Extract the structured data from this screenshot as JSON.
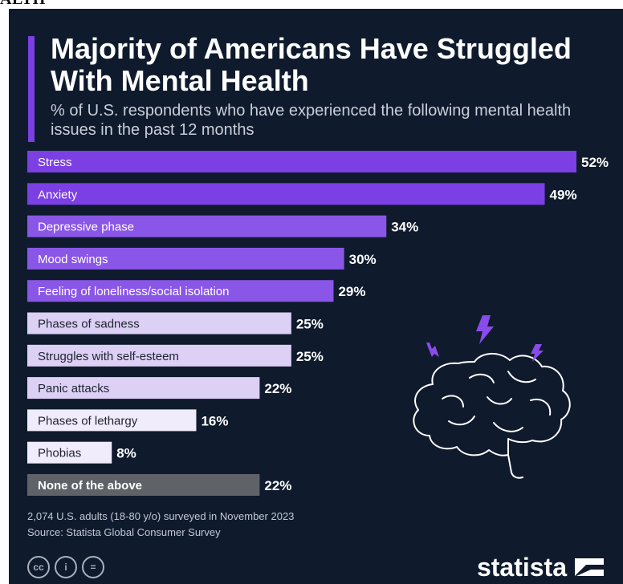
{
  "page_clip_text": "ALTH",
  "title": "Majority of Americans Have Struggled With Mental Health",
  "subtitle": "% of U.S. respondents who have experienced the following mental health issues in the past 12 months",
  "footer": {
    "note": "2,074 U.S. adults (18-80 y/o) surveyed in November 2023",
    "source": "Source: Statista Global Consumer Survey"
  },
  "license_icons": [
    "cc",
    "i",
    "="
  ],
  "brand": {
    "name": "statista"
  },
  "colors": {
    "background": "#0f1b2d",
    "accent": "#7b3fe4",
    "shades": [
      "#7b3fe4",
      "#8a56e8",
      "#9c6cf0",
      "#dcd0f4",
      "#f1ecfb",
      "#5f6368"
    ]
  },
  "chart_data": {
    "type": "bar",
    "orientation": "horizontal",
    "categories": [
      "Stress",
      "Anxiety",
      "Depressive phase",
      "Mood swings",
      "Feeling of loneliness/social isolation",
      "Phases of sadness",
      "Struggles with self-esteem",
      "Panic attacks",
      "Phases of lethargy",
      "Phobias",
      "None of the above"
    ],
    "values": [
      52,
      49,
      34,
      30,
      29,
      25,
      25,
      22,
      16,
      8,
      22
    ],
    "labels": [
      "52%",
      "49%",
      "34%",
      "30%",
      "29%",
      "25%",
      "25%",
      "22%",
      "16%",
      "8%",
      "22%"
    ],
    "shade_index": [
      0,
      0,
      1,
      1,
      1,
      3,
      3,
      3,
      4,
      4,
      5
    ],
    "xlim": [
      0,
      52
    ],
    "grid": false,
    "legend": "none"
  }
}
